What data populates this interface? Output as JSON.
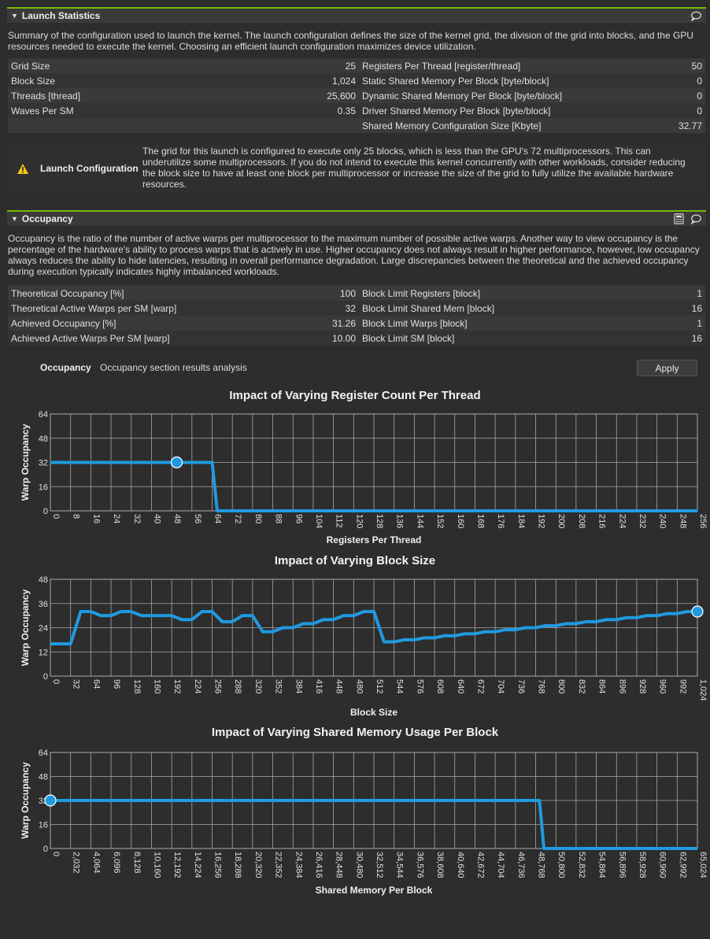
{
  "launch": {
    "title": "Launch Statistics",
    "description": "Summary of the configuration used to launch the kernel. The launch configuration defines the size of the kernel grid, the division of the grid into blocks, and the GPU resources needed to execute the kernel. Choosing an efficient launch configuration maximizes device utilization.",
    "rows": [
      {
        "l1": "Grid Size",
        "v1": "25",
        "l2": "Registers Per Thread [register/thread]",
        "v2": "50"
      },
      {
        "l1": "Block Size",
        "v1": "1,024",
        "l2": "Static Shared Memory Per Block [byte/block]",
        "v2": "0"
      },
      {
        "l1": "Threads [thread]",
        "v1": "25,600",
        "l2": "Dynamic Shared Memory Per Block [byte/block]",
        "v2": "0"
      },
      {
        "l1": "Waves Per SM",
        "v1": "0.35",
        "l2": "Driver Shared Memory Per Block [byte/block]",
        "v2": "0"
      },
      {
        "l1": "",
        "v1": "",
        "l2": "Shared Memory Configuration Size [Kbyte]",
        "v2": "32.77"
      }
    ],
    "warning_label": "Launch Configuration",
    "warning_text": "The grid for this launch is configured to execute only 25 blocks, which is less than the GPU's 72 multiprocessors. This can underutilize some multiprocessors. If you do not intend to execute this kernel concurrently with other workloads, consider reducing the block size to have at least one block per multiprocessor or increase the size of the grid to fully utilize the available hardware resources."
  },
  "occupancy": {
    "title": "Occupancy",
    "description": "Occupancy is the ratio of the number of active warps per multiprocessor to the maximum number of possible active warps. Another way to view occupancy is the percentage of the hardware's ability to process warps that is actively in use. Higher occupancy does not always result in higher performance, however, low occupancy always reduces the ability to hide latencies, resulting in overall performance degradation. Large discrepancies between the theoretical and the achieved occupancy during execution typically indicates highly imbalanced workloads.",
    "rows": [
      {
        "l1": "Theoretical Occupancy [%]",
        "v1": "100",
        "l2": "Block Limit Registers [block]",
        "v2": "1"
      },
      {
        "l1": "Theoretical Active Warps per SM [warp]",
        "v1": "32",
        "l2": "Block Limit Shared Mem [block]",
        "v2": "16"
      },
      {
        "l1": "Achieved Occupancy [%]",
        "v1": "31.26",
        "l2": "Block Limit Warps [block]",
        "v2": "1"
      },
      {
        "l1": "Achieved Active Warps Per SM [warp]",
        "v1": "10.00",
        "l2": "Block Limit SM [block]",
        "v2": "16"
      }
    ],
    "analysis_title": "Occupancy",
    "analysis_text": "Occupancy section results analysis",
    "apply_label": "Apply"
  },
  "colors": {
    "accent": "#76b900",
    "line": "#1f9ae0",
    "warning": "#f5c518"
  },
  "chart_data": [
    {
      "type": "line",
      "title": "Impact of Varying Register Count Per Thread",
      "xlabel": "Registers Per Thread",
      "ylabel": "Warp Occupancy",
      "xlim": [
        0,
        256
      ],
      "ylim": [
        0,
        64
      ],
      "xticks": [
        0,
        8,
        16,
        24,
        32,
        40,
        48,
        56,
        64,
        72,
        80,
        88,
        96,
        104,
        112,
        120,
        128,
        136,
        144,
        152,
        160,
        168,
        176,
        184,
        192,
        200,
        208,
        216,
        224,
        232,
        240,
        248,
        256
      ],
      "yticks": [
        0,
        16,
        32,
        48,
        64
      ],
      "x": [
        0,
        64,
        66,
        256
      ],
      "y": [
        32,
        32,
        0,
        0
      ],
      "marker": {
        "x": 50,
        "y": 32
      },
      "grid": true
    },
    {
      "type": "line",
      "title": "Impact of Varying Block Size",
      "xlabel": "Block Size",
      "ylabel": "Warp Occupancy",
      "xlim": [
        0,
        1024
      ],
      "ylim": [
        0,
        48
      ],
      "xticks": [
        0,
        32,
        64,
        96,
        128,
        160,
        192,
        224,
        256,
        288,
        320,
        352,
        384,
        416,
        448,
        480,
        512,
        544,
        576,
        608,
        640,
        672,
        704,
        736,
        768,
        800,
        832,
        864,
        896,
        928,
        960,
        992,
        1024
      ],
      "xticklabels": [
        "0",
        "32",
        "64",
        "96",
        "128",
        "160",
        "192",
        "224",
        "256",
        "288",
        "320",
        "352",
        "384",
        "416",
        "448",
        "480",
        "512",
        "544",
        "576",
        "608",
        "640",
        "672",
        "704",
        "736",
        "768",
        "800",
        "832",
        "864",
        "896",
        "928",
        "960",
        "992",
        "1,024"
      ],
      "yticks": [
        0,
        12,
        24,
        36,
        48
      ],
      "x": [
        0,
        32,
        48,
        64,
        80,
        96,
        112,
        128,
        144,
        160,
        176,
        192,
        208,
        224,
        240,
        256,
        272,
        288,
        304,
        320,
        336,
        352,
        368,
        384,
        400,
        416,
        432,
        448,
        464,
        480,
        496,
        512,
        528,
        544,
        560,
        576,
        592,
        608,
        624,
        640,
        656,
        672,
        688,
        704,
        720,
        736,
        752,
        768,
        784,
        800,
        816,
        832,
        848,
        864,
        880,
        896,
        912,
        928,
        944,
        960,
        976,
        992,
        1008,
        1024
      ],
      "y": [
        16,
        16,
        32,
        32,
        30,
        30,
        32,
        32,
        30,
        30,
        30,
        30,
        28,
        28,
        32,
        32,
        27,
        27,
        30,
        30,
        22,
        22,
        24,
        24,
        26,
        26,
        28,
        28,
        30,
        30,
        32,
        32,
        17,
        17,
        18,
        18,
        19,
        19,
        20,
        20,
        21,
        21,
        22,
        22,
        23,
        23,
        24,
        24,
        25,
        25,
        26,
        26,
        27,
        27,
        28,
        28,
        29,
        29,
        30,
        30,
        31,
        31,
        32,
        32
      ],
      "marker": {
        "x": 1024,
        "y": 32
      },
      "grid": true
    },
    {
      "type": "line",
      "title": "Impact of Varying Shared Memory Usage Per Block",
      "xlabel": "Shared Memory Per Block",
      "ylabel": "Warp Occupancy",
      "xlim": [
        0,
        65024
      ],
      "ylim": [
        0,
        64
      ],
      "xticks": [
        0,
        2032,
        4064,
        6096,
        8128,
        10160,
        12192,
        14224,
        16256,
        18288,
        20320,
        22352,
        24384,
        26416,
        28448,
        30480,
        32512,
        34544,
        36576,
        38608,
        40640,
        42672,
        44704,
        46736,
        48768,
        50800,
        52832,
        54864,
        56896,
        58928,
        60960,
        62992,
        65024
      ],
      "xticklabels": [
        "0",
        "2,032",
        "4,064",
        "6,096",
        "8,128",
        "10,160",
        "12,192",
        "14,224",
        "16,256",
        "18,288",
        "20,320",
        "22,352",
        "24,384",
        "26,416",
        "28,448",
        "30,480",
        "32,512",
        "34,544",
        "36,576",
        "38,608",
        "40,640",
        "42,672",
        "44,704",
        "46,736",
        "48,768",
        "50,800",
        "52,832",
        "54,864",
        "56,896",
        "58,928",
        "60,960",
        "62,992",
        "65,024"
      ],
      "yticks": [
        0,
        16,
        32,
        48,
        64
      ],
      "x": [
        0,
        49152,
        49600,
        65024
      ],
      "y": [
        32,
        32,
        0,
        0
      ],
      "marker": {
        "x": 0,
        "y": 32
      },
      "grid": true
    }
  ]
}
